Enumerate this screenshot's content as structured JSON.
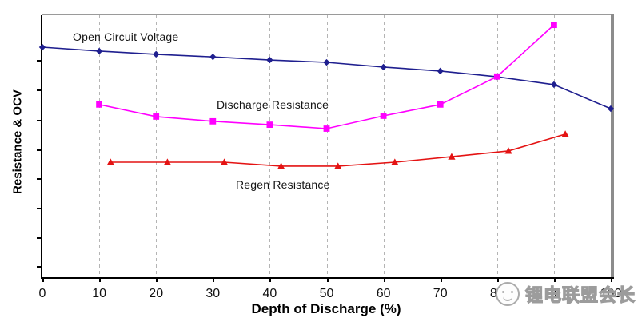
{
  "chart_data": {
    "type": "line",
    "title": "",
    "xlabel": "Depth of Discharge (%)",
    "ylabel": "Resistance & OCV",
    "xlim": [
      0,
      100
    ],
    "x_tick_values": [
      0,
      10,
      20,
      30,
      40,
      50,
      60,
      70,
      80,
      90,
      100
    ],
    "x_tick_labels": [
      "0",
      "10",
      "20",
      "30",
      "40",
      "50",
      "60",
      "70",
      "80",
      "90",
      "100"
    ],
    "y_axis_note": "y-axis has 8 unlabeled tick marks, no numeric scale shown",
    "grid": "vertical dashed gray gridlines at every 10% DOD",
    "legend_position": "inline text annotations next to each curve",
    "y_units": "relative curve height, % of plot height above x-axis (axis is unlabeled)",
    "series": [
      {
        "name": "Open Circuit Voltage",
        "color": "#1f1f8f",
        "marker": "diamond",
        "x": [
          0,
          10,
          20,
          30,
          40,
          50,
          60,
          70,
          80,
          90,
          100
        ],
        "y": [
          87.8,
          86.3,
          85.1,
          84.1,
          82.9,
          82.0,
          80.2,
          78.7,
          76.5,
          73.5,
          64.3
        ]
      },
      {
        "name": "Discharge Resistance",
        "color": "#ff00ff",
        "marker": "square",
        "x": [
          10,
          20,
          30,
          40,
          50,
          60,
          70,
          80,
          90
        ],
        "y": [
          65.9,
          61.3,
          59.5,
          58.2,
          56.7,
          61.6,
          65.9,
          76.6,
          96.3
        ]
      },
      {
        "name": "Regen Resistance",
        "color": "#e41313",
        "marker": "triangle",
        "x": [
          12,
          22,
          32,
          42,
          52,
          62,
          72,
          82,
          92
        ],
        "y": [
          43.9,
          43.9,
          43.9,
          42.4,
          42.4,
          43.9,
          46.0,
          48.2,
          54.6
        ]
      }
    ]
  },
  "watermark": {
    "text": "锂电联盟会长",
    "logo": "circular mascot face logo"
  }
}
